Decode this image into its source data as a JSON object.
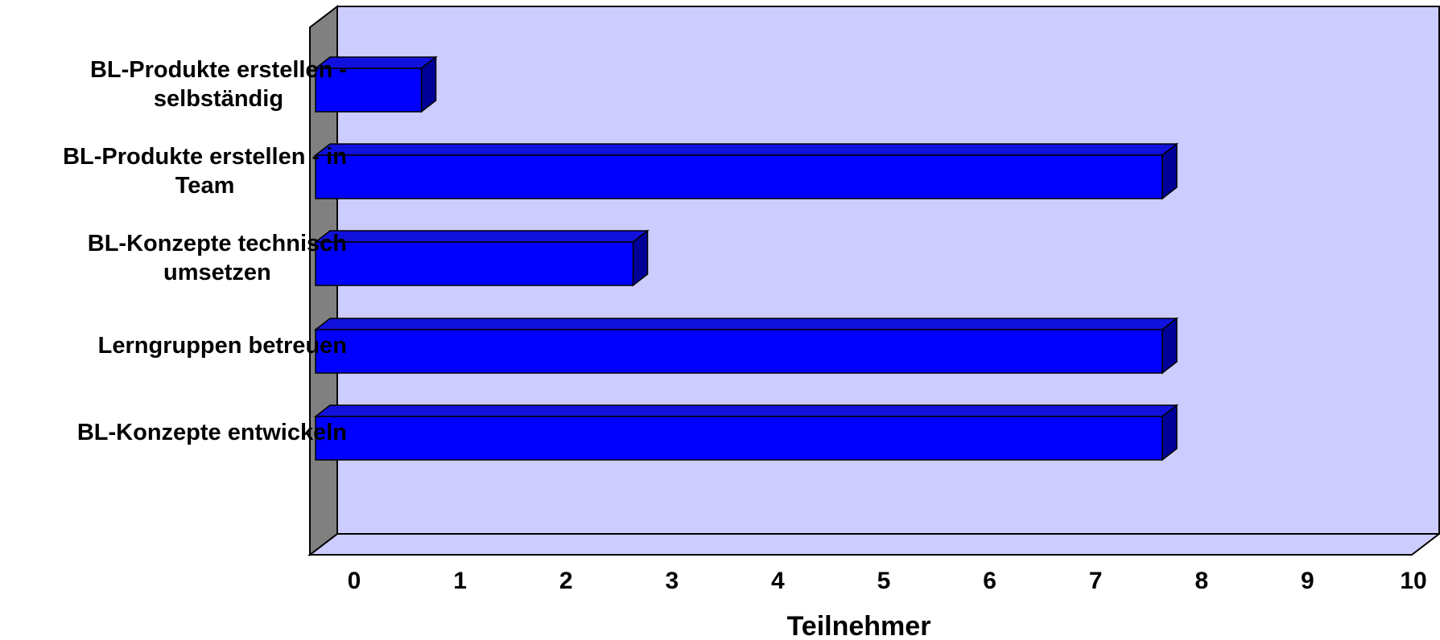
{
  "chart_data": {
    "type": "bar",
    "orientation": "horizontal",
    "style": "3d",
    "categories": [
      "BL-Produkte erstellen - selbständig",
      "BL-Produkte erstellen - in Team",
      "BL-Konzepte technisch umsetzen",
      "Lerngruppen betreuen",
      "BL-Konzepte entwickeln"
    ],
    "category_label_lines": [
      [
        "BL-Produkte erstellen -",
        "selbständig"
      ],
      [
        "BL-Produkte erstellen - in",
        "Team"
      ],
      [
        "BL-Konzepte technisch",
        "umsetzen"
      ],
      [
        "Lerngruppen betreuen"
      ],
      [
        "BL-Konzepte entwickeln"
      ]
    ],
    "values": [
      1,
      8,
      3,
      8,
      8
    ],
    "xlabel": "Teilnehmer",
    "ylabel": "",
    "title": "",
    "xlim": [
      0,
      10
    ],
    "x_ticks": [
      "0",
      "1",
      "2",
      "3",
      "4",
      "5",
      "6",
      "7",
      "8",
      "9",
      "10"
    ],
    "grid": false,
    "legend": "none",
    "colors": {
      "bar_front": "#0000ff",
      "bar_top": "#1111dd",
      "bar_side": "#000099",
      "plot_back_wall": "#ccccff",
      "plot_side_wall": "#808080",
      "plot_floor": "#ccccff"
    }
  }
}
